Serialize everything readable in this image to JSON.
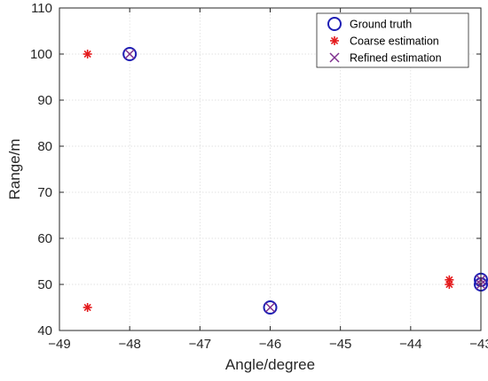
{
  "chart_data": {
    "type": "scatter",
    "xlabel": "Angle/degree",
    "ylabel": "Range/m",
    "xlim": [
      -49,
      -43
    ],
    "ylim": [
      40,
      110
    ],
    "xticks": [
      "-49",
      "-48",
      "-47",
      "-46",
      "-45",
      "-44",
      "-43"
    ],
    "yticks": [
      "40",
      "50",
      "60",
      "70",
      "80",
      "90",
      "100",
      "110"
    ],
    "grid": true,
    "legend_position": "top-right",
    "series": [
      {
        "name": "Ground truth",
        "marker": "circle",
        "color": "#1f1fb4",
        "points": [
          {
            "x": -48,
            "y": 100
          },
          {
            "x": -46,
            "y": 45
          },
          {
            "x": -43,
            "y": 51
          },
          {
            "x": -43,
            "y": 50
          }
        ]
      },
      {
        "name": "Coarse estimation",
        "marker": "asterisk",
        "color": "#e41a1c",
        "points": [
          {
            "x": -48.6,
            "y": 100
          },
          {
            "x": -48.6,
            "y": 45
          },
          {
            "x": -43.45,
            "y": 51
          },
          {
            "x": -43.45,
            "y": 50
          }
        ]
      },
      {
        "name": "Refined estimation",
        "marker": "x",
        "color": "#7e2f8e",
        "points": [
          {
            "x": -48,
            "y": 100
          },
          {
            "x": -46,
            "y": 45
          },
          {
            "x": -43,
            "y": 51
          },
          {
            "x": -43,
            "y": 50
          }
        ]
      }
    ]
  }
}
